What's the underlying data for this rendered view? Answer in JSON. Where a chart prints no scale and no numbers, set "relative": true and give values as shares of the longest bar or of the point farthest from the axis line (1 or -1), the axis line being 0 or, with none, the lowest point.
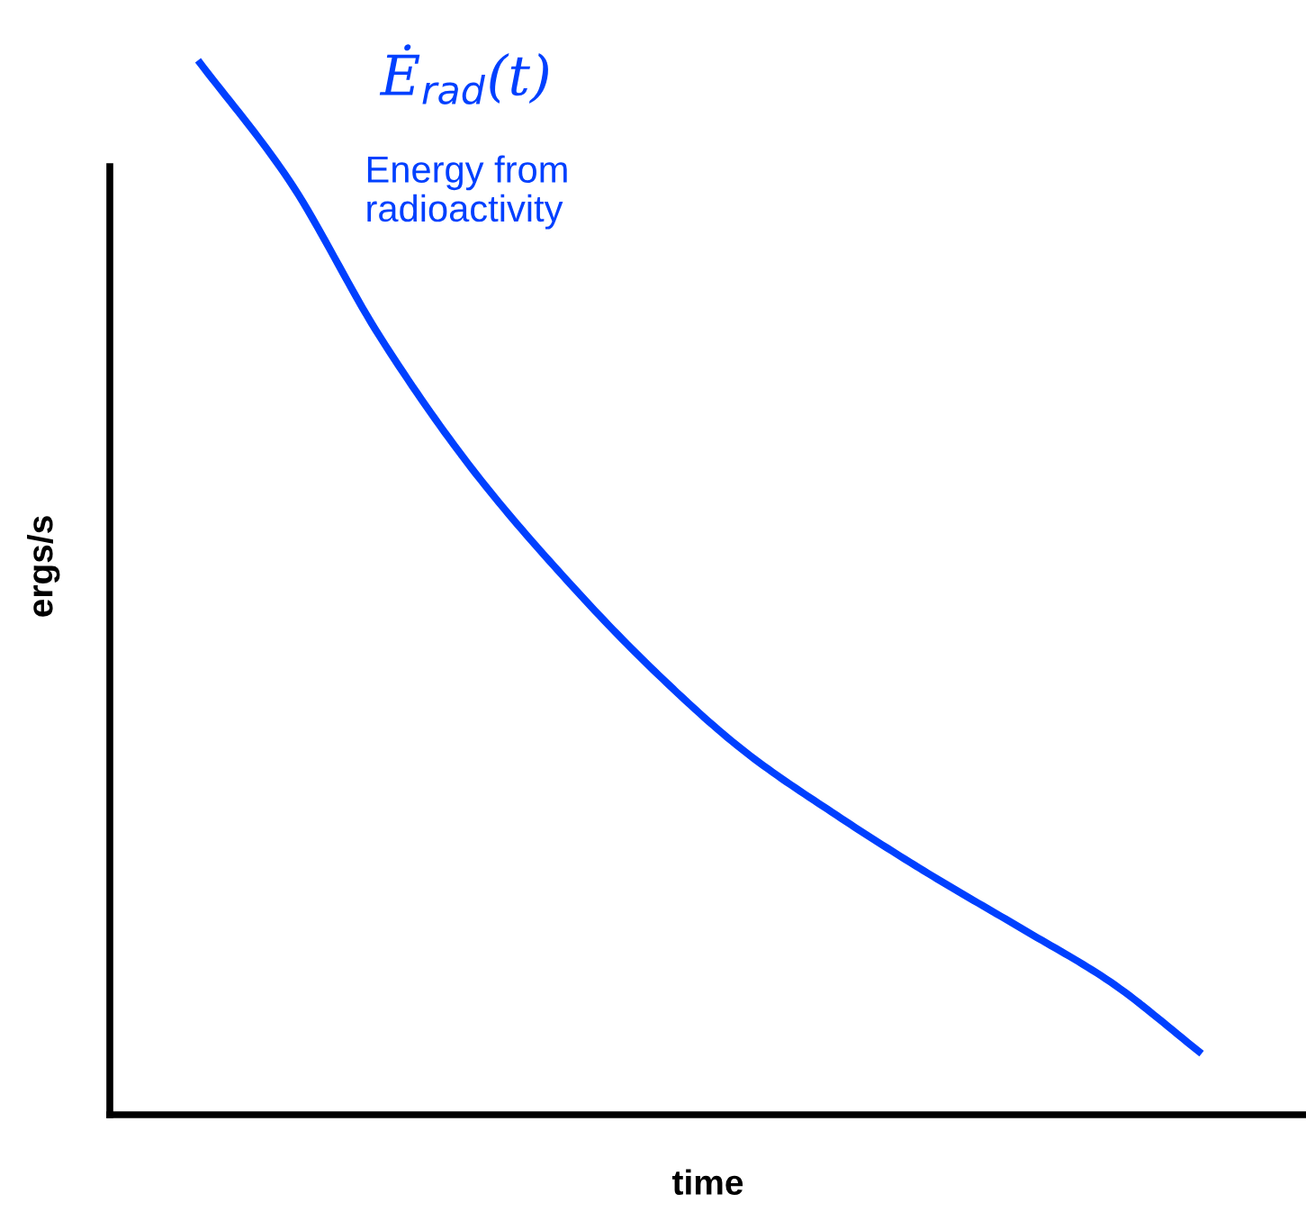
{
  "chart_data": {
    "type": "line",
    "relative": true,
    "xlabel": "time",
    "ylabel": "ergs/s",
    "categories": [
      null,
      null,
      null,
      null,
      null,
      null,
      null,
      null,
      null,
      null,
      null,
      null
    ],
    "series": [
      {
        "name": "Ė$_{rad}$(t)",
        "color": "#0040ff",
        "values": [
          1.0,
          0.886,
          0.737,
          0.613,
          0.511,
          0.421,
          0.344,
          0.284,
          0.229,
          0.178,
          0.126,
          0.058
        ]
      }
    ],
    "annotations": [
      "Energy from\nradioactivity"
    ],
    "grid": false,
    "legend": false,
    "marker": "none",
    "line_style": "solid"
  }
}
